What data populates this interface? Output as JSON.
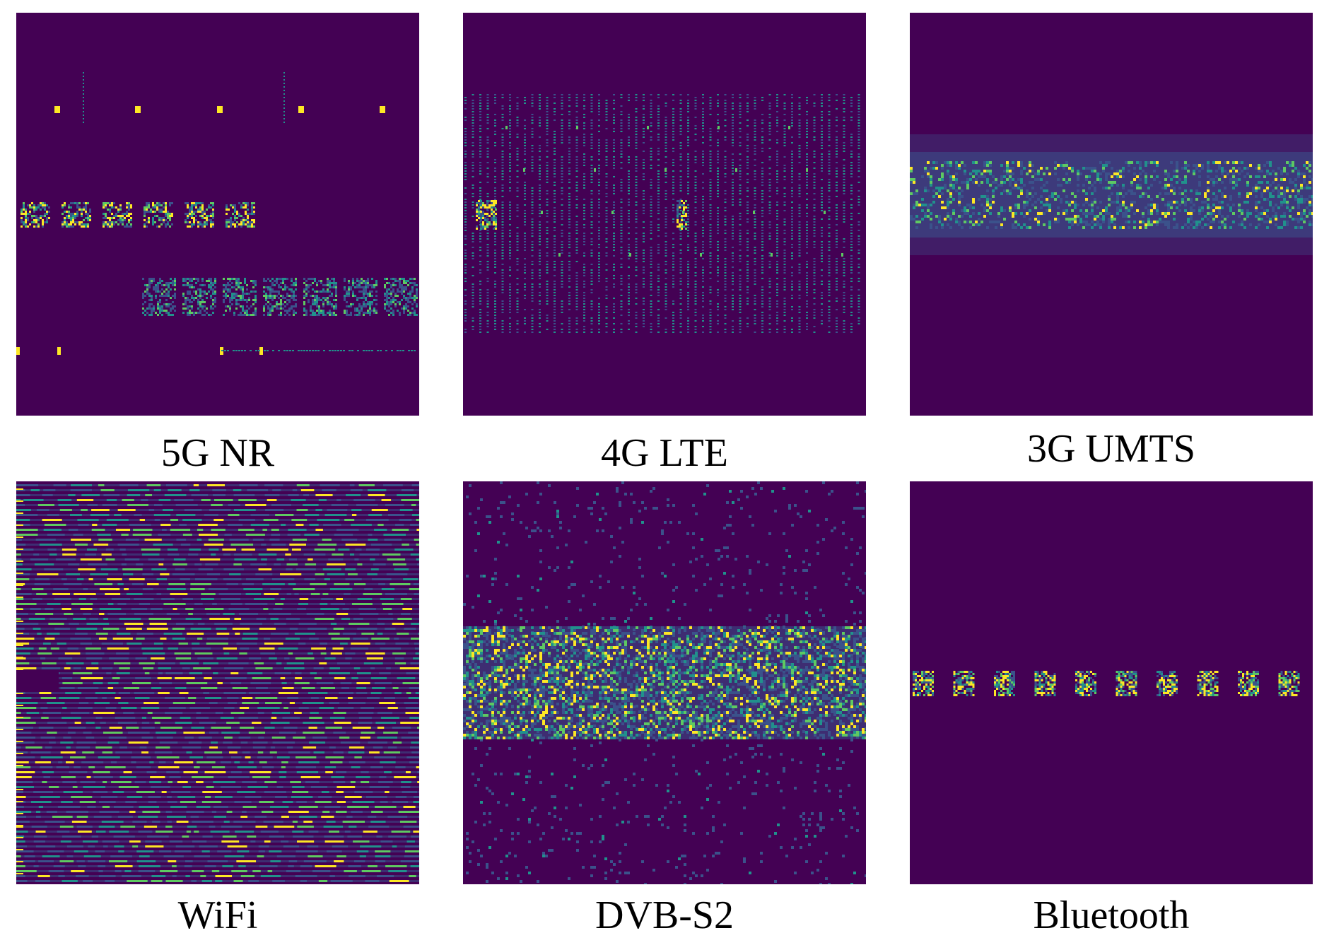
{
  "colors": {
    "background": "#440154",
    "low": "#3b528b",
    "mid": "#21918c",
    "high": "#5ec962",
    "peak": "#fde725"
  },
  "panels": [
    {
      "id": "5g-nr",
      "label": "5G NR"
    },
    {
      "id": "4g-lte",
      "label": "4G LTE"
    },
    {
      "id": "3g-umts",
      "label": "3G UMTS"
    },
    {
      "id": "wifi",
      "label": "WiFi"
    },
    {
      "id": "dvb-s2",
      "label": "DVB-S2"
    },
    {
      "id": "bluetooth",
      "label": "Bluetooth"
    }
  ]
}
